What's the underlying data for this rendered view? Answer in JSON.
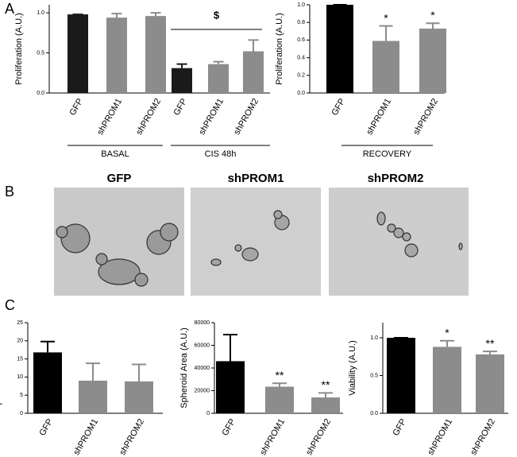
{
  "panels": [
    "A",
    "B",
    "C"
  ],
  "images": [
    {
      "title": "GFP"
    },
    {
      "title": "shPROM1"
    },
    {
      "title": "shPROM2"
    }
  ],
  "chart_data": [
    {
      "type": "bar",
      "ylabel": "Proliferation (A.U.)",
      "categories": [
        "GFP",
        "shPROM1",
        "shPROM2",
        "GFP",
        "shPROM1",
        "shPROM2"
      ],
      "values": [
        0.98,
        0.94,
        0.96,
        0.31,
        0.36,
        0.52
      ],
      "errors": [
        0,
        0.05,
        0.04,
        0.05,
        0.03,
        0.14
      ],
      "colors": [
        "#1a1a1a",
        "#8c8c8c",
        "#8c8c8c",
        "#1a1a1a",
        "#8c8c8c",
        "#8c8c8c"
      ],
      "ylim": [
        0,
        1.1
      ],
      "yticks": [
        {
          "value": 0,
          "label": "0.0"
        },
        {
          "value": 0.5,
          "label": "0.5"
        },
        {
          "value": 1,
          "label": "1.0"
        }
      ],
      "groups": [
        "BASAL",
        "CIS 48h"
      ],
      "annotation": "$"
    },
    {
      "type": "bar",
      "ylabel": "Proliferation (A.U.)",
      "categories": [
        "GFP",
        "shPROM1",
        "shPROM2"
      ],
      "values": [
        1.0,
        0.59,
        0.73
      ],
      "errors": [
        0,
        0.17,
        0.06
      ],
      "colors": [
        "#000000",
        "#8c8c8c",
        "#8c8c8c"
      ],
      "value_annotations": [
        null,
        "*",
        "*"
      ],
      "ylim": [
        0,
        1
      ],
      "yticks": [
        {
          "value": 0,
          "label": "0.0"
        },
        {
          "value": 0.2,
          "label": "0.2"
        },
        {
          "value": 0.4,
          "label": "0.4"
        },
        {
          "value": 0.6,
          "label": "0.6"
        },
        {
          "value": 0.8,
          "label": "0.8"
        },
        {
          "value": 1,
          "label": "1.0"
        }
      ],
      "groups": [
        "RECOVERY"
      ]
    },
    {
      "type": "bar",
      "ylabel": "Spheroid number/field",
      "categories": [
        "GFP",
        "shPROM1",
        "shPROM2"
      ],
      "values": [
        16.8,
        9,
        8.8
      ],
      "errors": [
        3,
        4.8,
        4.7
      ],
      "colors": [
        "#000000",
        "#8c8c8c",
        "#8c8c8c"
      ],
      "ylim": [
        0,
        25
      ],
      "yticks": [
        0,
        5,
        10,
        15,
        20,
        25
      ]
    },
    {
      "type": "bar",
      "ylabel": "Spheroid Area (A.U.)",
      "categories": [
        "GFP",
        "shPROM1",
        "shPROM2"
      ],
      "values": [
        46000,
        23500,
        14000
      ],
      "errors": [
        23500,
        3000,
        4000
      ],
      "colors": [
        "#000000",
        "#8c8c8c",
        "#8c8c8c"
      ],
      "value_annotations": [
        null,
        "**",
        "**"
      ],
      "ylim": [
        0,
        80000
      ],
      "yticks": [
        0,
        20000,
        40000,
        60000,
        80000
      ]
    },
    {
      "type": "bar",
      "ylabel": "Viability (A.U.)",
      "categories": [
        "GFP",
        "shPROM1",
        "shPROM2"
      ],
      "values": [
        1.0,
        0.88,
        0.78
      ],
      "errors": [
        0,
        0.08,
        0.04
      ],
      "colors": [
        "#000000",
        "#8c8c8c",
        "#8c8c8c"
      ],
      "value_annotations": [
        null,
        "*",
        "**"
      ],
      "ylim": [
        0,
        1.2
      ],
      "yticks": [
        {
          "value": 0,
          "label": "0.0"
        },
        {
          "value": 0.5,
          "label": "0.5"
        },
        {
          "value": 1,
          "label": "1.0"
        }
      ]
    }
  ]
}
